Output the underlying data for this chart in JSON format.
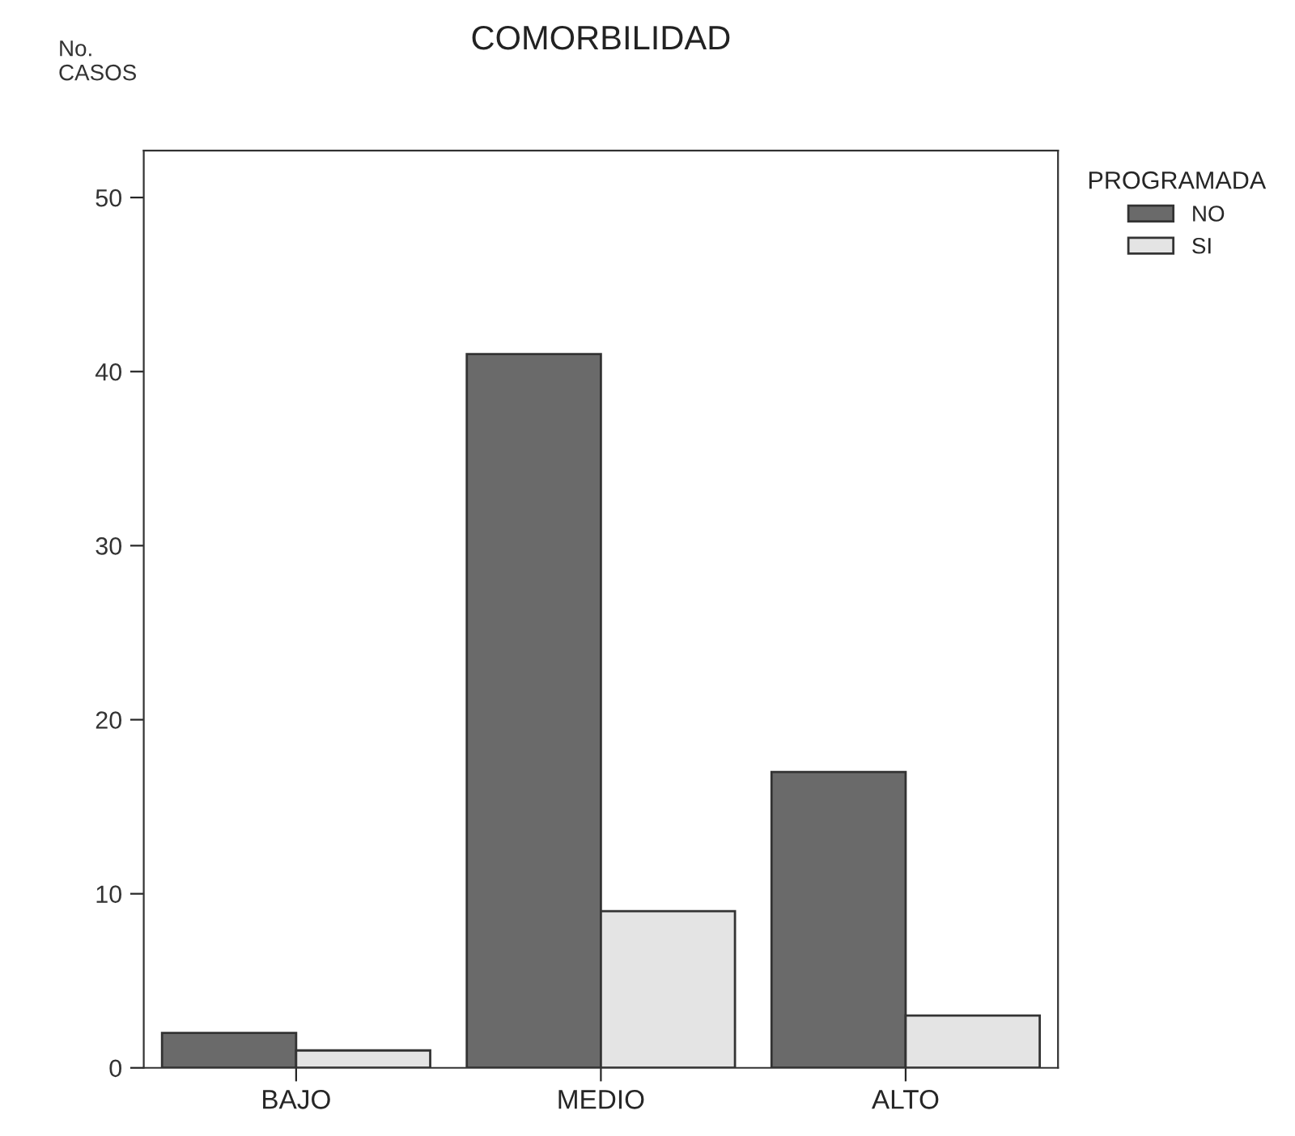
{
  "chart_data": {
    "type": "bar",
    "title": "COMORBILIDAD",
    "ylabel": "No.\nCASOS",
    "legend_title": "PROGRAMADA",
    "categories": [
      "BAJO",
      "MEDIO",
      "ALTO"
    ],
    "series": [
      {
        "name": "NO",
        "color": "#6a6a6a",
        "values": [
          2,
          41,
          17
        ]
      },
      {
        "name": "SI",
        "color": "#e4e4e4",
        "values": [
          1,
          9,
          3
        ]
      }
    ],
    "ylim": [
      0,
      52.7
    ],
    "yticks": [
      0,
      10,
      20,
      30,
      40,
      50
    ],
    "grid": false,
    "legend": "top right"
  }
}
